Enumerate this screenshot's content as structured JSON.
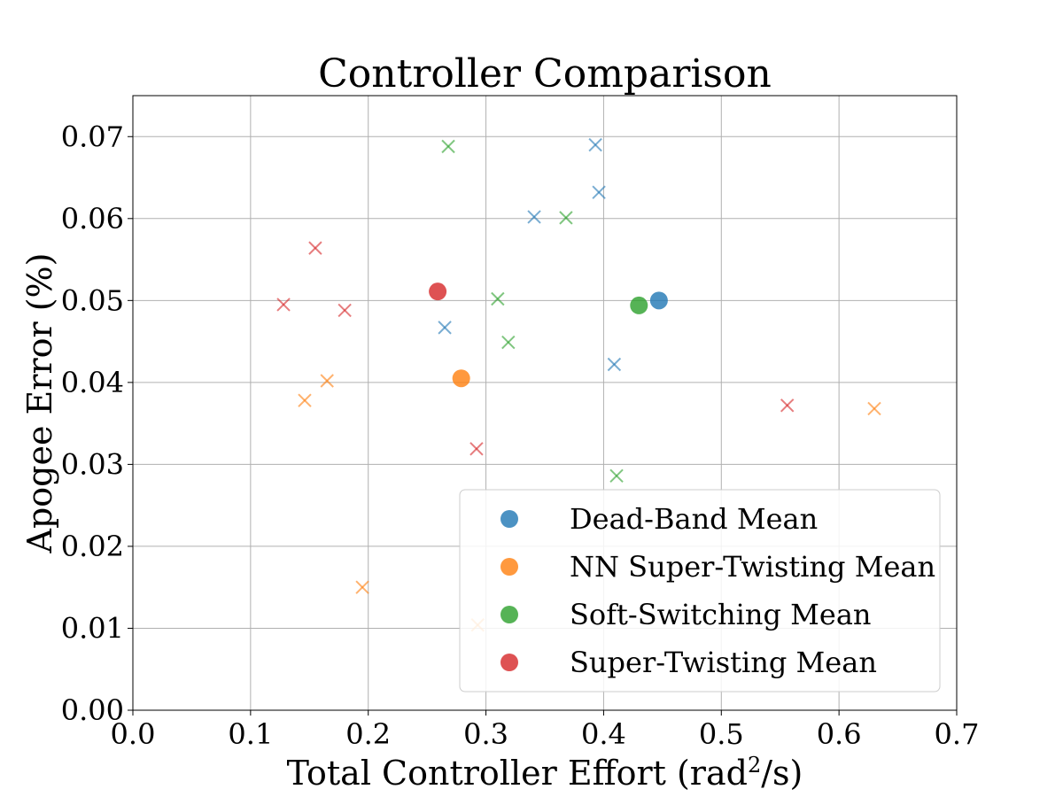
{
  "chart_data": {
    "type": "scatter",
    "title": "Controller Comparison",
    "xlabel": "Total Controller Effort (rad",
    "xlabel_sup": "2",
    "xlabel_tail": "/s)",
    "ylabel": "Apogee Error (%)",
    "xlim": [
      0.0,
      0.7
    ],
    "ylim": [
      0.0,
      0.075
    ],
    "xticks": [
      0.0,
      0.1,
      0.2,
      0.3,
      0.4,
      0.5,
      0.6,
      0.7
    ],
    "xtick_labels": [
      "0.0",
      "0.1",
      "0.2",
      "0.3",
      "0.4",
      "0.5",
      "0.6",
      "0.7"
    ],
    "yticks": [
      0.0,
      0.01,
      0.02,
      0.03,
      0.04,
      0.05,
      0.06,
      0.07
    ],
    "ytick_labels": [
      "0.00",
      "0.01",
      "0.02",
      "0.03",
      "0.04",
      "0.05",
      "0.06",
      "0.07"
    ],
    "grid": true,
    "legend_position": "lower-right",
    "series": [
      {
        "name": "Dead-Band Mean",
        "color": "#1f77b4",
        "mean": {
          "x": 0.447,
          "y": 0.05
        },
        "runs": [
          {
            "x": 0.393,
            "y": 0.069
          },
          {
            "x": 0.396,
            "y": 0.0632
          },
          {
            "x": 0.341,
            "y": 0.0602
          },
          {
            "x": 0.265,
            "y": 0.0467
          },
          {
            "x": 0.409,
            "y": 0.0422
          }
        ]
      },
      {
        "name": "NN Super-Twisting Mean",
        "color": "#ff7f0e",
        "mean": {
          "x": 0.279,
          "y": 0.0405
        },
        "runs": [
          {
            "x": 0.165,
            "y": 0.0402
          },
          {
            "x": 0.146,
            "y": 0.0378
          },
          {
            "x": 0.63,
            "y": 0.0368
          },
          {
            "x": 0.195,
            "y": 0.015
          },
          {
            "x": 0.293,
            "y": 0.0104
          }
        ]
      },
      {
        "name": "Soft-Switching Mean",
        "color": "#2ca02c",
        "mean": {
          "x": 0.43,
          "y": 0.0494
        },
        "runs": [
          {
            "x": 0.268,
            "y": 0.0688
          },
          {
            "x": 0.368,
            "y": 0.0601
          },
          {
            "x": 0.31,
            "y": 0.0502
          },
          {
            "x": 0.319,
            "y": 0.0449
          },
          {
            "x": 0.411,
            "y": 0.0286
          }
        ]
      },
      {
        "name": "Super-Twisting Mean",
        "color": "#d62728",
        "mean": {
          "x": 0.259,
          "y": 0.0511
        },
        "runs": [
          {
            "x": 0.155,
            "y": 0.0564
          },
          {
            "x": 0.128,
            "y": 0.0495
          },
          {
            "x": 0.18,
            "y": 0.0488
          },
          {
            "x": 0.556,
            "y": 0.0372
          },
          {
            "x": 0.292,
            "y": 0.0319
          }
        ]
      }
    ]
  }
}
